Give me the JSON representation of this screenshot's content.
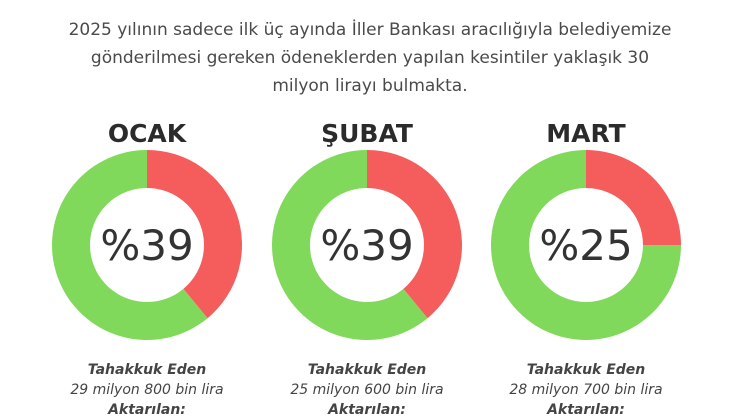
{
  "subtitle": "2025 yılının sadece ilk üç ayında İller Bankası aracılığıyla belediyemize gönderilmesi gereken ödeneklerden yapılan kesintiler yaklaşık 30 milyon lirayı bulmakta.",
  "chart_data": [
    {
      "type": "pie",
      "title": "OCAK",
      "categories": [
        null,
        null
      ],
      "values": [
        39,
        61
      ],
      "value_labels": [
        "%39",
        null
      ],
      "colors": [
        "#f55c5c",
        "#80d95a"
      ],
      "annotations": [
        "Tahakkuk Eden",
        "29 milyon 800 bin lira",
        "Aktarılan:"
      ]
    },
    {
      "type": "pie",
      "title": "ŞUBAT",
      "categories": [
        null,
        null
      ],
      "values": [
        39,
        61
      ],
      "value_labels": [
        "%39",
        null
      ],
      "colors": [
        "#f55c5c",
        "#80d95a"
      ],
      "annotations": [
        "Tahakkuk Eden",
        "25 milyon 600 bin lira",
        "Aktarılan:"
      ]
    },
    {
      "type": "pie",
      "title": "MART",
      "categories": [
        null,
        null
      ],
      "values": [
        25,
        75
      ],
      "value_labels": [
        "%25",
        null
      ],
      "colors": [
        "#f55c5c",
        "#80d95a"
      ],
      "annotations": [
        "Tahakkuk Eden",
        "28 milyon 700 bin lira",
        "Aktarılan:"
      ]
    }
  ]
}
